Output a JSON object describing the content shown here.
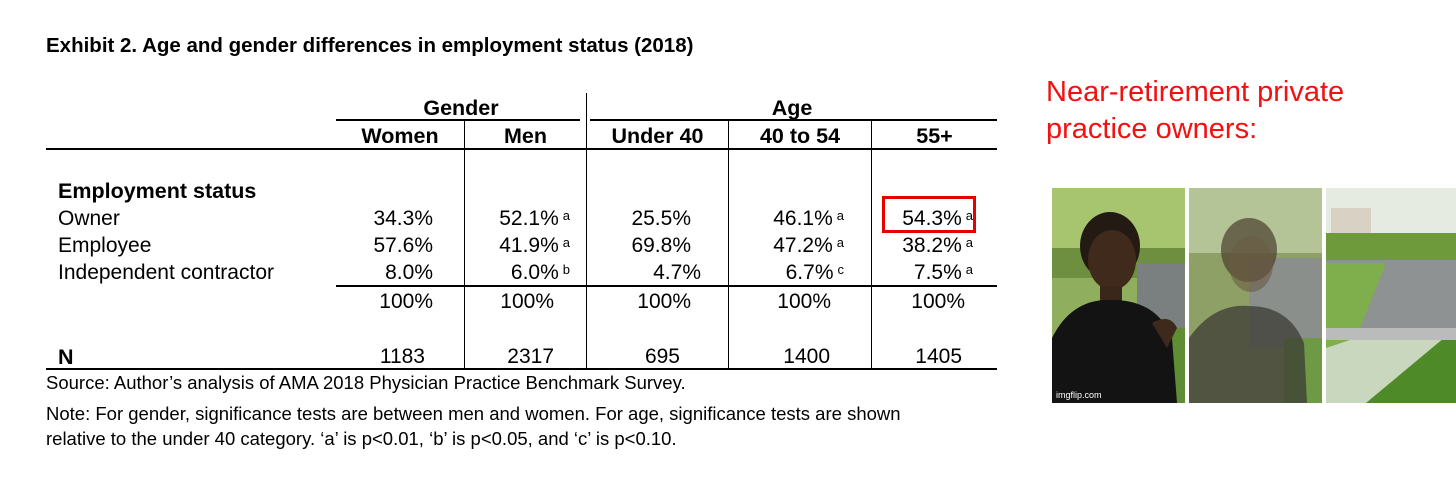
{
  "title": "Exhibit 2. Age and gender differences in employment status (2018)",
  "table": {
    "group_headers": {
      "gender": "Gender",
      "age": "Age"
    },
    "columns": [
      "Women",
      "Men",
      "Under 40",
      "40 to 54",
      "55+"
    ],
    "section_label": "Employment status",
    "rows": [
      {
        "label": "Owner",
        "cells": [
          {
            "value": "34.3%",
            "sig": ""
          },
          {
            "value": "52.1%",
            "sig": "a"
          },
          {
            "value": "25.5%",
            "sig": ""
          },
          {
            "value": "46.1%",
            "sig": "a"
          },
          {
            "value": "54.3%",
            "sig": "a"
          }
        ]
      },
      {
        "label": "Employee",
        "cells": [
          {
            "value": "57.6%",
            "sig": ""
          },
          {
            "value": "41.9%",
            "sig": "a"
          },
          {
            "value": "69.8%",
            "sig": ""
          },
          {
            "value": "47.2%",
            "sig": "a"
          },
          {
            "value": "38.2%",
            "sig": "a"
          }
        ]
      },
      {
        "label": "Independent contractor",
        "cells": [
          {
            "value": "8.0%",
            "sig": ""
          },
          {
            "value": "6.0%",
            "sig": "b"
          },
          {
            "value": "4.7%",
            "sig": ""
          },
          {
            "value": "6.7%",
            "sig": "c"
          },
          {
            "value": "7.5%",
            "sig": "a"
          }
        ]
      }
    ],
    "totals": [
      "100%",
      "100%",
      "100%",
      "100%",
      "100%"
    ],
    "n_label": "N",
    "n_values": [
      "1183",
      "2317",
      "695",
      "1400",
      "1405"
    ]
  },
  "source": "Source: Author’s analysis of AMA 2018 Physician Practice Benchmark Survey.",
  "note_line1": "Note: For gender, significance tests are between men and women. For age, significance tests are shown",
  "note_line2": "relative to the under 40 category. ‘a’ is p<0.01, ‘b’ is p<0.05, and ‘c’ is p<0.10.",
  "meme": {
    "caption": "Near-retirement private practice owners:",
    "watermark": "imgflip.com",
    "caption_color": "#f21010",
    "highlight_color": "#e60000"
  }
}
